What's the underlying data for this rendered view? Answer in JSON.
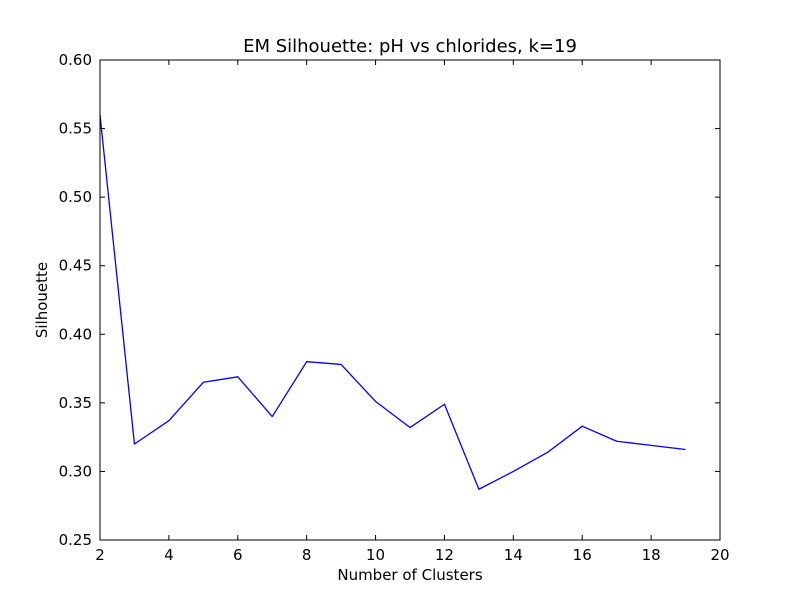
{
  "chart_data": {
    "type": "line",
    "title": "EM Silhouette: pH vs chlorides, k=19",
    "xlabel": "Number of Clusters",
    "ylabel": "Silhouette",
    "xlim": [
      2,
      20
    ],
    "ylim": [
      0.25,
      0.6
    ],
    "xticks": [
      2,
      4,
      6,
      8,
      10,
      12,
      14,
      16,
      18,
      20
    ],
    "xtick_labels": [
      "2",
      "4",
      "6",
      "8",
      "10",
      "12",
      "14",
      "16",
      "18",
      "20"
    ],
    "yticks": [
      0.25,
      0.3,
      0.35,
      0.4,
      0.45,
      0.5,
      0.55,
      0.6
    ],
    "ytick_labels": [
      "0.25",
      "0.30",
      "0.35",
      "0.40",
      "0.45",
      "0.50",
      "0.55",
      "0.60"
    ],
    "grid": false,
    "x": [
      2,
      3,
      4,
      5,
      6,
      7,
      8,
      9,
      10,
      11,
      12,
      13,
      14,
      15,
      16,
      17,
      18,
      19
    ],
    "series": [
      {
        "color": "#0000ff",
        "values": [
          0.56,
          0.32,
          0.337,
          0.365,
          0.369,
          0.34,
          0.38,
          0.378,
          0.351,
          0.332,
          0.349,
          0.287,
          0.3,
          0.314,
          0.333,
          0.322,
          0.319,
          0.316
        ]
      }
    ]
  }
}
